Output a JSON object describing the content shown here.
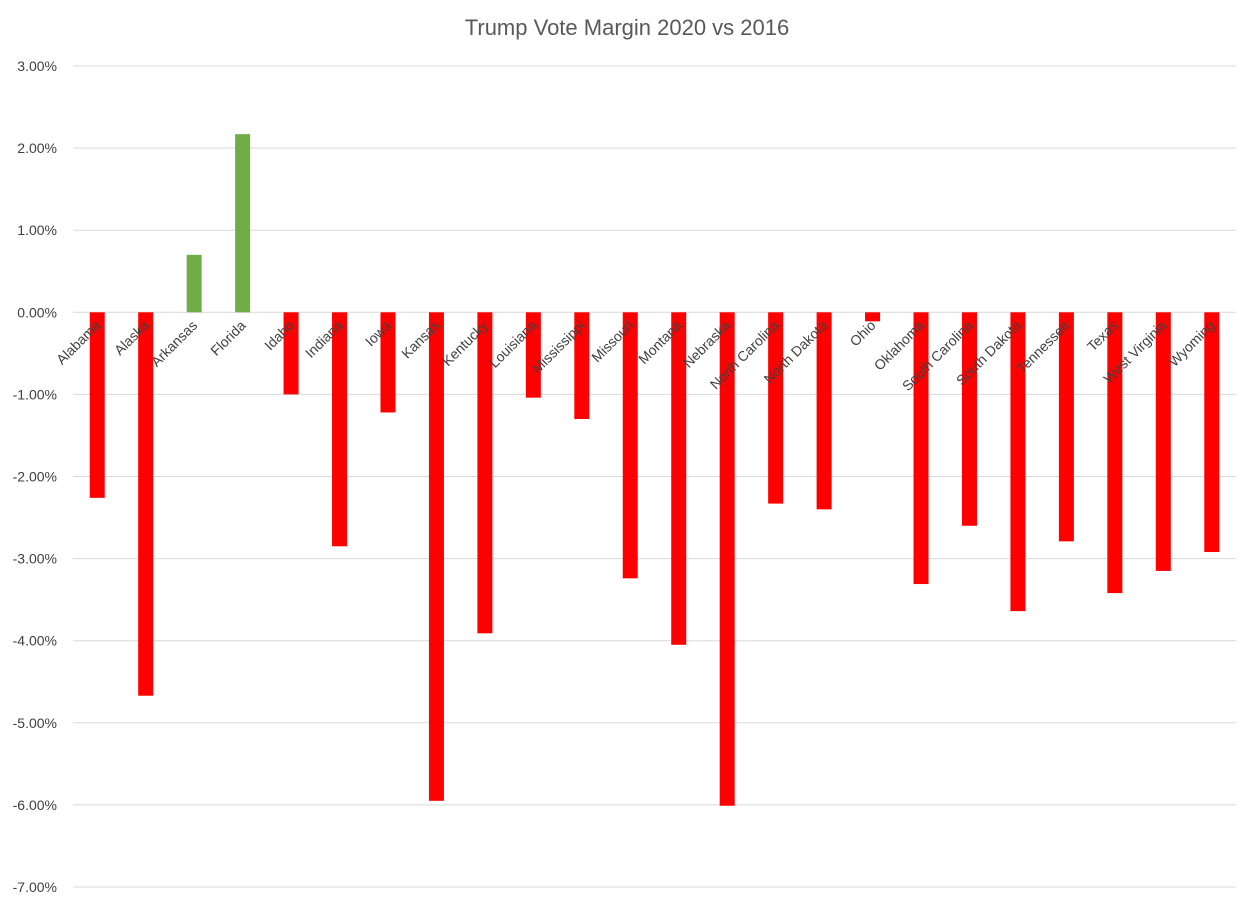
{
  "chart_data": {
    "type": "bar",
    "title": "Trump Vote Margin 2020 vs 2016",
    "xlabel": "",
    "ylabel": "",
    "ylim": [
      -0.07,
      0.03
    ],
    "y_tick_labels": [
      "3.00%",
      "2.00%",
      "1.00%",
      "0.00%",
      "-1.00%",
      "-2.00%",
      "-3.00%",
      "-4.00%",
      "-5.00%",
      "-6.00%",
      "-7.00%"
    ],
    "grid": true,
    "legend": "none",
    "colors": {
      "positive": "#70ad47",
      "negative": "#ff0000",
      "grid": "#d9d9d9",
      "text": "#404040",
      "title": "#595959"
    },
    "categories": [
      "Alabama",
      "Alaska",
      "Arkansas",
      "Florida",
      "Idaho",
      "Indiana",
      "Iowa",
      "Kansas",
      "Kentucky",
      "Louisiana",
      "Mississippi",
      "Missouri",
      "Montana",
      "Nebraska",
      "North Carolina",
      "North Dakota",
      "Ohio",
      "Oklahoma",
      "South Carolina",
      "South Dakota",
      "Tennessee",
      "Texas",
      "West Virginia",
      "Wyoming"
    ],
    "values": [
      -0.0226,
      -0.0467,
      0.007,
      0.0217,
      -0.01,
      -0.0285,
      -0.0122,
      -0.0595,
      -0.0391,
      -0.0104,
      -0.013,
      -0.0324,
      -0.0405,
      -0.0601,
      -0.0233,
      -0.024,
      -0.0011,
      -0.0331,
      -0.026,
      -0.0364,
      -0.0279,
      -0.0342,
      -0.0315,
      -0.0292
    ]
  }
}
